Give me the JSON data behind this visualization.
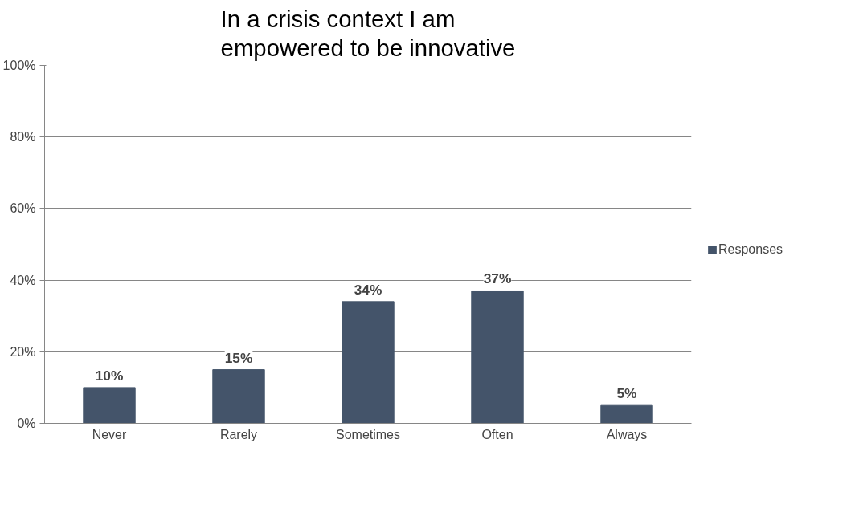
{
  "chart_data": {
    "type": "bar",
    "title": "In a crisis context I am empowered to be innovative",
    "categories": [
      "Never",
      "Rarely",
      "Sometimes",
      "Often",
      "Always"
    ],
    "series": [
      {
        "name": "Responses",
        "color": "#44546a",
        "values": [
          10,
          15,
          34,
          37,
          5
        ],
        "value_labels": [
          "10%",
          "15%",
          "34%",
          "37%",
          "5%"
        ]
      }
    ],
    "ylim": [
      0,
      100
    ],
    "yticks": [
      {
        "value": 0,
        "label": "0%"
      },
      {
        "value": 20,
        "label": "20%"
      },
      {
        "value": 40,
        "label": "40%"
      },
      {
        "value": 60,
        "label": "60%"
      },
      {
        "value": 80,
        "label": "80%"
      },
      {
        "value": 100,
        "label": "100%"
      }
    ],
    "grid": "y",
    "legend": "right"
  }
}
